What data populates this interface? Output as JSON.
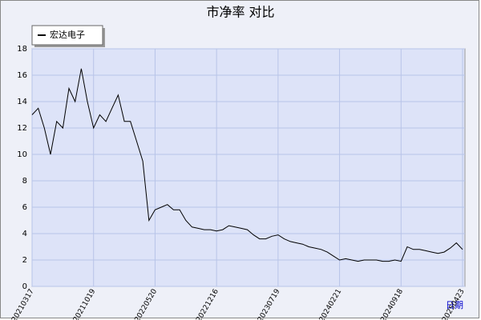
{
  "chart_data": {
    "type": "line",
    "title": "市净率  对比",
    "x_label": "日期",
    "categories": [
      "20210317",
      null,
      null,
      null,
      null,
      null,
      null,
      null,
      null,
      null,
      "20211019",
      null,
      null,
      null,
      null,
      null,
      null,
      null,
      null,
      null,
      "20220520",
      null,
      null,
      null,
      null,
      null,
      null,
      null,
      null,
      null,
      "20221216",
      null,
      null,
      null,
      null,
      null,
      null,
      null,
      null,
      null,
      "20230719",
      null,
      null,
      null,
      null,
      null,
      null,
      null,
      null,
      null,
      "20240221",
      null,
      null,
      null,
      null,
      null,
      null,
      null,
      null,
      null,
      "20240918",
      null,
      null,
      null,
      null,
      null,
      null,
      null,
      null,
      null,
      "20250423"
    ],
    "series": [
      {
        "name": "宏达电子",
        "color": "#000000",
        "values": [
          13,
          13.5,
          12,
          10,
          12.5,
          12,
          15,
          14,
          16.5,
          14,
          12,
          13,
          12.5,
          13.5,
          14.5,
          12.5,
          12.5,
          11,
          9.5,
          5,
          5.8,
          6,
          6.2,
          5.8,
          5.8,
          5,
          4.5,
          4.4,
          4.3,
          4.3,
          4.2,
          4.3,
          4.6,
          4.5,
          4.4,
          4.3,
          3.9,
          3.6,
          3.6,
          3.8,
          3.9,
          3.6,
          3.4,
          3.3,
          3.2,
          3.0,
          2.9,
          2.8,
          2.6,
          2.3,
          2.0,
          2.1,
          2.0,
          1.9,
          2.0,
          2.0,
          2.0,
          1.9,
          1.9,
          2.0,
          1.9,
          3.0,
          2.8,
          2.8,
          2.7,
          2.6,
          2.5,
          2.6,
          2.9,
          3.3,
          2.8
        ]
      }
    ],
    "ylim": [
      0,
      18
    ],
    "yticks": [
      0,
      2,
      4,
      6,
      8,
      10,
      12,
      14,
      16,
      18
    ],
    "grid": true,
    "legend": "top-left"
  }
}
